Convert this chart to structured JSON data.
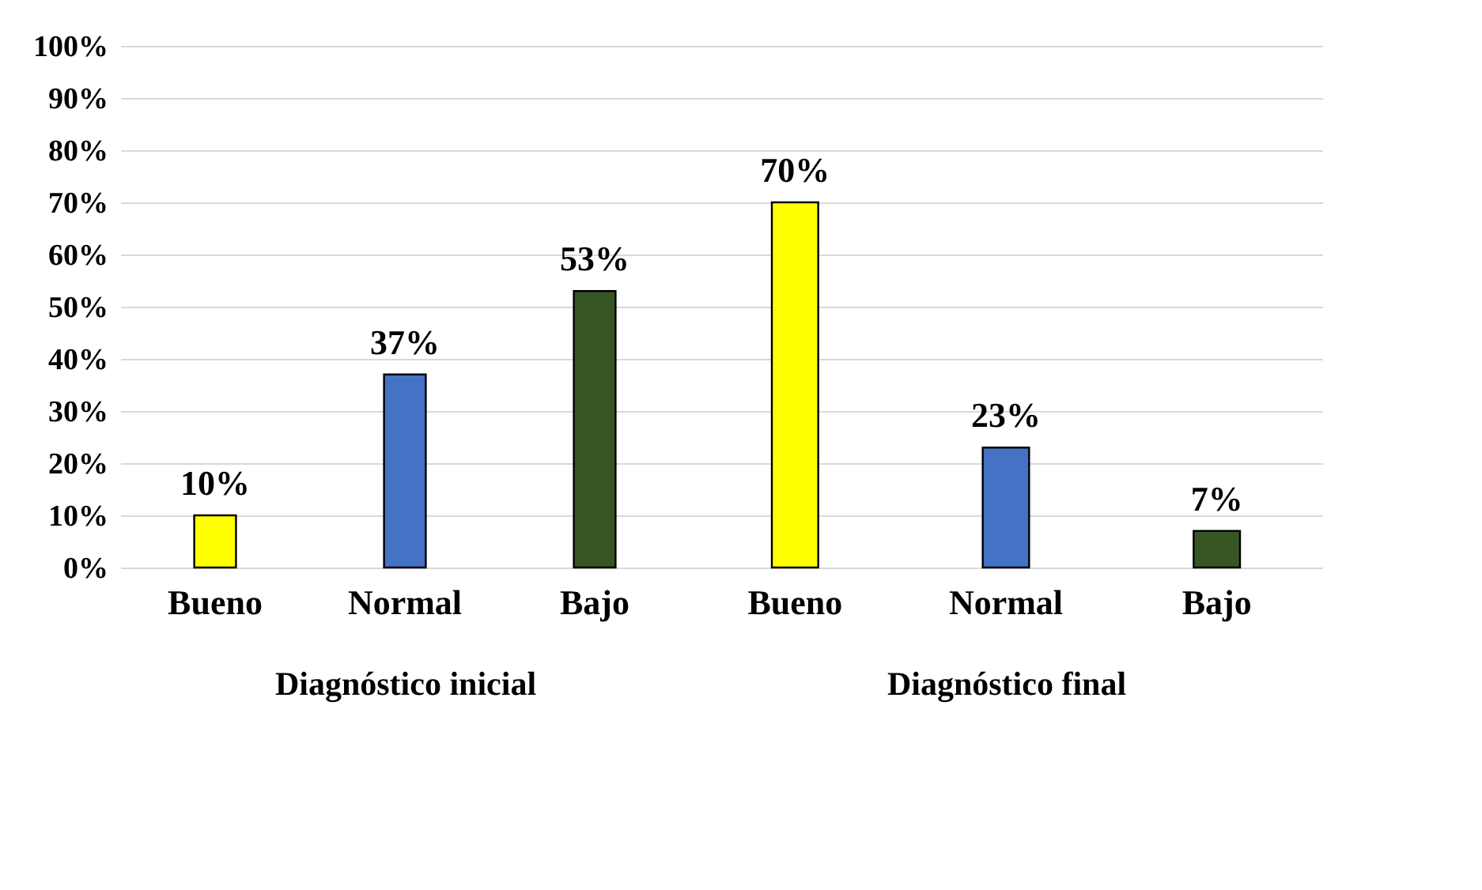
{
  "chart_data": [
    {
      "type": "bar",
      "xlabel": "Diagnóstico inicial",
      "categories": [
        "Bueno",
        "Normal",
        "Bajo"
      ],
      "values": [
        10,
        37,
        53
      ],
      "colors": [
        "#ffff00",
        "#4472c4",
        "#375623"
      ],
      "value_labels": [
        "10%",
        "37%",
        "53%"
      ],
      "ylim": [
        0,
        100
      ],
      "yticks": [
        {
          "value": 0,
          "label": "0%"
        },
        {
          "value": 10,
          "label": "10%"
        },
        {
          "value": 20,
          "label": "20%"
        },
        {
          "value": 30,
          "label": "30%"
        },
        {
          "value": 40,
          "label": "40%"
        },
        {
          "value": 50,
          "label": "50%"
        },
        {
          "value": 60,
          "label": "60%"
        },
        {
          "value": 70,
          "label": "70%"
        },
        {
          "value": 80,
          "label": "80%"
        },
        {
          "value": 90,
          "label": "90%"
        },
        {
          "value": 100,
          "label": "100%"
        }
      ],
      "grid": "y",
      "legend": false
    },
    {
      "type": "bar",
      "xlabel": "Diagnóstico final",
      "categories": [
        "Bueno",
        "Normal",
        "Bajo"
      ],
      "values": [
        70,
        23,
        7
      ],
      "colors": [
        "#ffff00",
        "#4472c4",
        "#375623"
      ],
      "value_labels": [
        "70%",
        "23%",
        "7%"
      ],
      "ylim": [
        0,
        100
      ],
      "yticks": [
        {
          "value": 0,
          "label": null
        },
        {
          "value": 10,
          "label": null
        },
        {
          "value": 20,
          "label": null
        },
        {
          "value": 30,
          "label": null
        },
        {
          "value": 40,
          "label": null
        },
        {
          "value": 50,
          "label": null
        },
        {
          "value": 60,
          "label": null
        },
        {
          "value": 70,
          "label": null
        },
        {
          "value": 80,
          "label": null
        },
        {
          "value": 90,
          "label": null
        },
        {
          "value": 100,
          "label": null
        }
      ],
      "grid": "y",
      "legend": false,
      "tick_labels": "x"
    }
  ]
}
